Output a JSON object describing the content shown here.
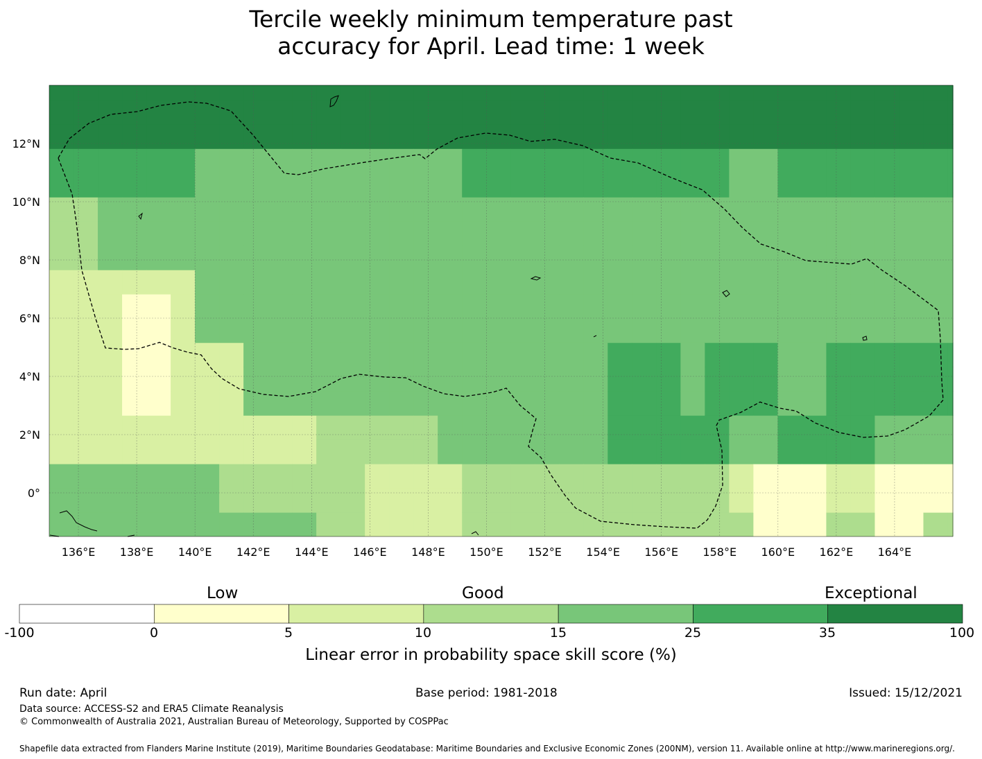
{
  "title_line1": "Tercile weekly minimum temperature past",
  "title_line2": "accuracy for April. Lead time: 1 week",
  "map": {
    "lon_range": [
      135,
      166
    ],
    "lat_range": [
      -1.5,
      14
    ],
    "x_ticks": [
      "136°E",
      "138°E",
      "140°E",
      "142°E",
      "144°E",
      "146°E",
      "148°E",
      "150°E",
      "152°E",
      "154°E",
      "156°E",
      "158°E",
      "160°E",
      "162°E",
      "164°E"
    ],
    "x_tick_values": [
      136,
      138,
      140,
      142,
      144,
      146,
      148,
      150,
      152,
      154,
      156,
      158,
      160,
      162,
      164
    ],
    "y_ticks": [
      "12°N",
      "10°N",
      "8°N",
      "6°N",
      "4°N",
      "2°N",
      "0°"
    ],
    "y_tick_values": [
      12,
      10,
      8,
      6,
      4,
      2,
      0
    ],
    "grid": true,
    "eez_boundary_style": "dashed"
  },
  "colorbar": {
    "category_labels": [
      {
        "text": "Low",
        "at": 2.5
      },
      {
        "text": "Good",
        "at": 12.5
      },
      {
        "text": "Exceptional",
        "at": 67.5
      }
    ],
    "boundaries": [
      "-100",
      "0",
      "5",
      "10",
      "15",
      "25",
      "35",
      "100"
    ],
    "colors": [
      "#ffffff",
      "#ffffcc",
      "#d9f0a3",
      "#addd8e",
      "#78c679",
      "#41ab5d",
      "#238443"
    ],
    "label": "Linear error in probability space skill score (%)"
  },
  "colors": {
    "c1": "#ffffcc",
    "c2": "#d9f0a3",
    "c3": "#addd8e",
    "c4": "#78c679",
    "c5": "#41ab5d",
    "c6": "#238443"
  },
  "footer": {
    "run_date": "Run date: April",
    "base_period": "Base period: 1981-2018",
    "issued": "Issued: 15/12/2021",
    "data_source": "Data source: ACCESS-S2 and ERA5 Climate Reanalysis",
    "copyright": "© Commonwealth of Australia 2021, Australian Bureau of Meteorology, Supported by COSPPac",
    "shapefile": "Shapefile data extracted from Flanders Marine Institute (2019), Maritime Boundaries Geodatabase: Maritime Boundaries and Exclusive Economic Zones (200NM), version 11. Available online at http://www.marineregions.org/."
  }
}
